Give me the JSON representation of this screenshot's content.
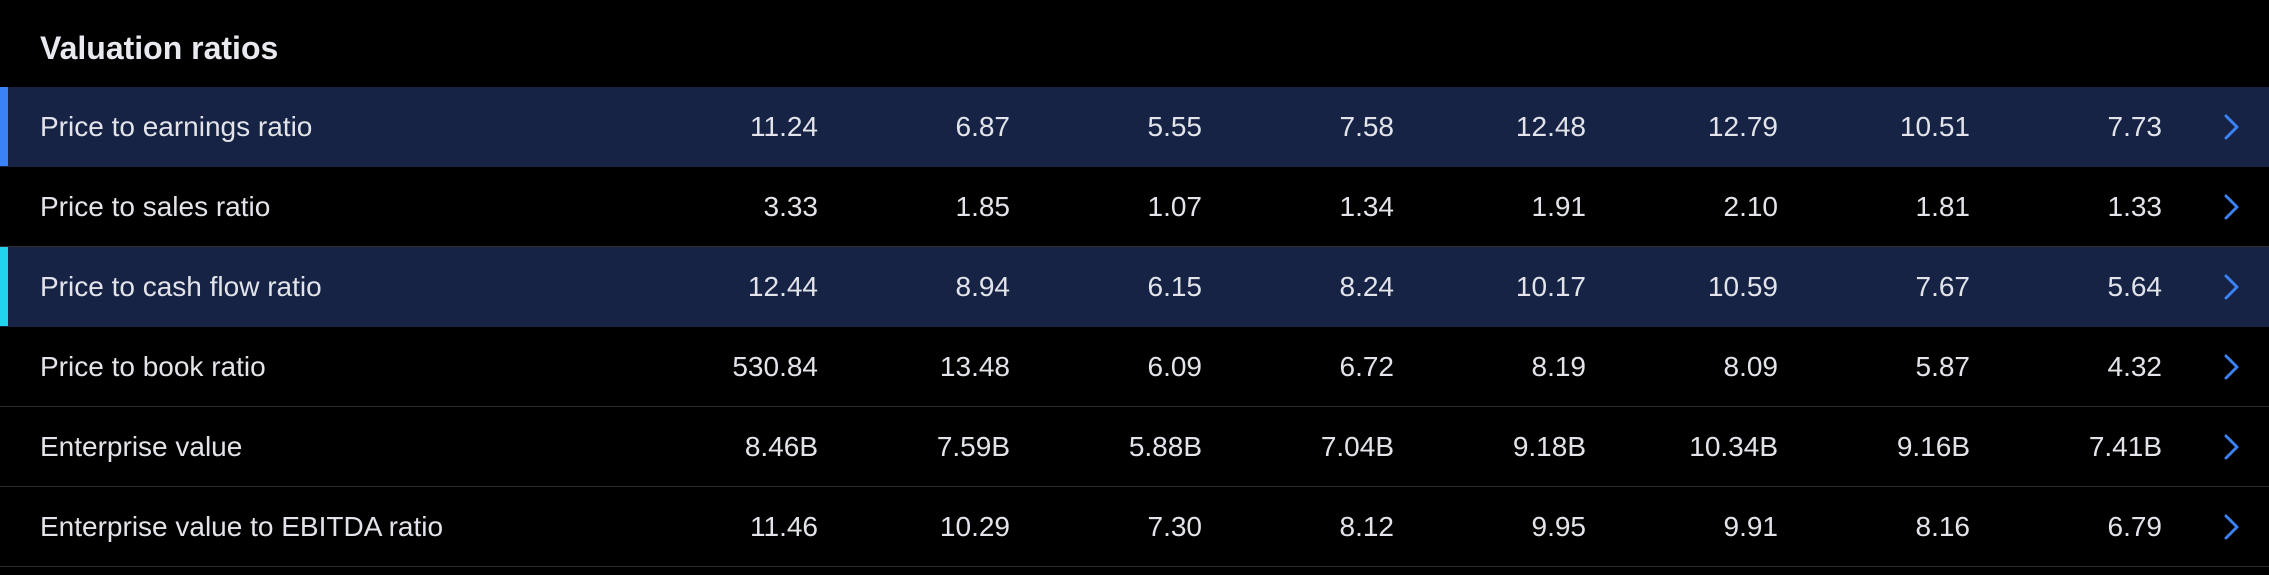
{
  "section": {
    "title": "Valuation ratios"
  },
  "colors": {
    "background": "#000000",
    "row_highlight": "#172344",
    "marker_blue": "#3b82f6",
    "marker_cyan": "#22d3ee",
    "chevron": "#3b82f6",
    "divider": "#2c2c30"
  },
  "rows": [
    {
      "label": "Price to earnings ratio",
      "values": [
        "11.24",
        "6.87",
        "5.55",
        "7.58",
        "12.48",
        "12.79",
        "10.51",
        "7.73"
      ],
      "highlighted": true,
      "marker_color": "#3b82f6"
    },
    {
      "label": "Price to sales ratio",
      "values": [
        "3.33",
        "1.85",
        "1.07",
        "1.34",
        "1.91",
        "2.10",
        "1.81",
        "1.33"
      ],
      "highlighted": false,
      "marker_color": null
    },
    {
      "label": "Price to cash flow ratio",
      "values": [
        "12.44",
        "8.94",
        "6.15",
        "8.24",
        "10.17",
        "10.59",
        "7.67",
        "5.64"
      ],
      "highlighted": true,
      "marker_color": "#22d3ee"
    },
    {
      "label": "Price to book ratio",
      "values": [
        "530.84",
        "13.48",
        "6.09",
        "6.72",
        "8.19",
        "8.09",
        "5.87",
        "4.32"
      ],
      "highlighted": false,
      "marker_color": null
    },
    {
      "label": "Enterprise value",
      "values": [
        "8.46B",
        "7.59B",
        "5.88B",
        "7.04B",
        "9.18B",
        "10.34B",
        "9.16B",
        "7.41B"
      ],
      "highlighted": false,
      "marker_color": null
    },
    {
      "label": "Enterprise value to EBITDA ratio",
      "values": [
        "11.46",
        "10.29",
        "7.30",
        "8.12",
        "9.95",
        "9.91",
        "8.16",
        "6.79"
      ],
      "highlighted": false,
      "marker_color": null
    }
  ],
  "icons": {
    "row_action": "chevron-right-icon"
  }
}
